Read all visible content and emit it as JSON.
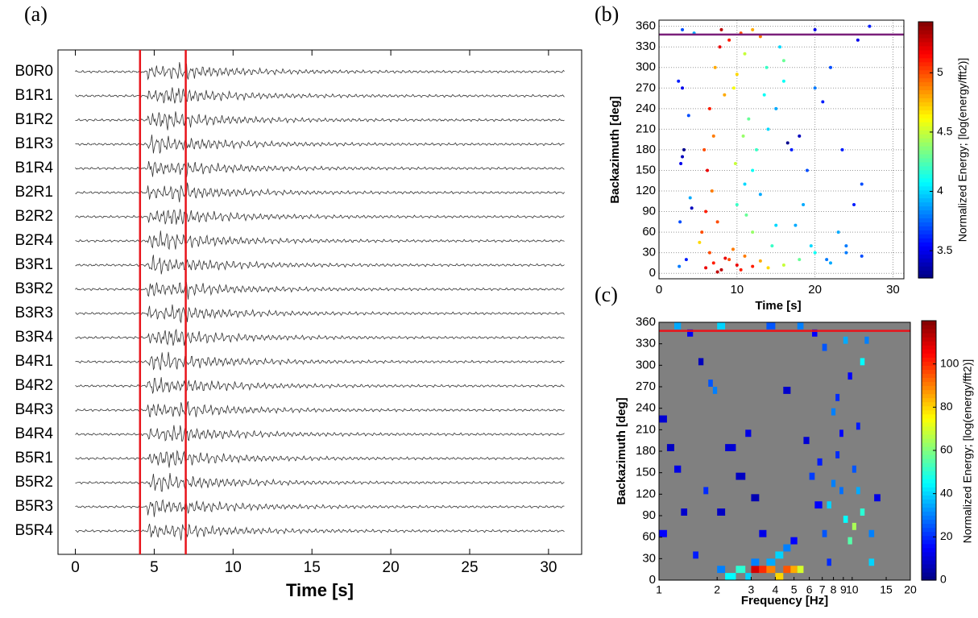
{
  "chart_data": [
    {
      "type": "traces",
      "label": "(a)",
      "xlabel": "Time [s]",
      "stations": [
        "B0R0",
        "B1R1",
        "B1R2",
        "B1R3",
        "B1R4",
        "B2R1",
        "B2R2",
        "B2R4",
        "B3R1",
        "B3R2",
        "B3R3",
        "B3R4",
        "B4R1",
        "B4R2",
        "B4R3",
        "B4R4",
        "B5R1",
        "B5R2",
        "B5R3",
        "B5R4"
      ],
      "xlim": [
        -1.1,
        32.1
      ],
      "xticks": [
        0,
        5,
        10,
        15,
        20,
        25,
        30
      ],
      "markers": [
        4.1,
        7.0
      ],
      "marker_color": "#e8141b",
      "trace_color": "#333333"
    },
    {
      "type": "scatter",
      "label": "(b)",
      "xlabel": "Time [s]",
      "ylabel": "Backazimuth [deg]",
      "colorbar_label": "Normalized Energy; [log(energy/fft2)]",
      "colormap": "jet",
      "xlim": [
        0,
        31.4
      ],
      "xticks": [
        0,
        10,
        20,
        30
      ],
      "ylim": [
        -8,
        369
      ],
      "yticks": [
        0,
        30,
        60,
        90,
        120,
        150,
        180,
        210,
        240,
        270,
        300,
        330,
        360
      ],
      "clim": [
        3.27,
        5.43
      ],
      "cticks": [
        3.5,
        4,
        4.5,
        5
      ],
      "grid": true,
      "hline": 348,
      "hline_color": "#7a1f7a",
      "points": [
        [
          6,
          8,
          5.2
        ],
        [
          7,
          15,
          5.1
        ],
        [
          8,
          5,
          5.3
        ],
        [
          9,
          20,
          5.0
        ],
        [
          10,
          12,
          5.2
        ],
        [
          11,
          25,
          4.9
        ],
        [
          12,
          10,
          5.1
        ],
        [
          13,
          18,
          4.8
        ],
        [
          6.5,
          30,
          5.0
        ],
        [
          7.5,
          2,
          5.3
        ],
        [
          8.5,
          22,
          5.2
        ],
        [
          9.5,
          35,
          4.9
        ],
        [
          10.5,
          5,
          5.1
        ],
        [
          14,
          8,
          4.7
        ],
        [
          16,
          12,
          4.5
        ],
        [
          18,
          20,
          4.3
        ],
        [
          20,
          30,
          4.1
        ],
        [
          22,
          15,
          3.9
        ],
        [
          24,
          40,
          3.8
        ],
        [
          26,
          25,
          3.7
        ],
        [
          5.5,
          60,
          5.0
        ],
        [
          6,
          90,
          5.1
        ],
        [
          6.2,
          150,
          5.2
        ],
        [
          5.8,
          180,
          5.0
        ],
        [
          7,
          200,
          4.9
        ],
        [
          6.5,
          240,
          5.1
        ],
        [
          7.2,
          300,
          4.8
        ],
        [
          7.8,
          330,
          5.2
        ],
        [
          8,
          355,
          5.3
        ],
        [
          9,
          340,
          5.1
        ],
        [
          6.8,
          120,
          4.9
        ],
        [
          7.5,
          75,
          5.0
        ],
        [
          5.2,
          45,
          4.7
        ],
        [
          8.4,
          260,
          4.8
        ],
        [
          9.6,
          270,
          4.6
        ],
        [
          10,
          290,
          4.7
        ],
        [
          10.5,
          350,
          5.0
        ],
        [
          11,
          320,
          4.5
        ],
        [
          12,
          355,
          4.8
        ],
        [
          13,
          345,
          4.9
        ],
        [
          10,
          100,
          4.2
        ],
        [
          11,
          130,
          4.0
        ],
        [
          12,
          150,
          4.1
        ],
        [
          13,
          115,
          3.9
        ],
        [
          12.5,
          180,
          4.2
        ],
        [
          14,
          210,
          4.0
        ],
        [
          11.5,
          225,
          4.3
        ],
        [
          13.5,
          260,
          4.1
        ],
        [
          12,
          60,
          4.4
        ],
        [
          14.5,
          40,
          4.2
        ],
        [
          15,
          70,
          4.0
        ],
        [
          10.8,
          200,
          4.4
        ],
        [
          9.8,
          160,
          4.5
        ],
        [
          11.2,
          85,
          4.3
        ],
        [
          13.8,
          300,
          4.2
        ],
        [
          15.5,
          330,
          4.0
        ],
        [
          16,
          310,
          4.3
        ],
        [
          15,
          240,
          3.9
        ],
        [
          17,
          180,
          3.6
        ],
        [
          18,
          200,
          3.4
        ],
        [
          16.5,
          190,
          3.3
        ],
        [
          19,
          150,
          3.7
        ],
        [
          20,
          270,
          3.8
        ],
        [
          21,
          250,
          3.6
        ],
        [
          22,
          300,
          3.7
        ],
        [
          23,
          60,
          3.9
        ],
        [
          24,
          30,
          3.8
        ],
        [
          25,
          100,
          3.6
        ],
        [
          26,
          130,
          3.7
        ],
        [
          27,
          360,
          3.6
        ],
        [
          20,
          355,
          3.5
        ],
        [
          18.5,
          100,
          3.9
        ],
        [
          19.5,
          40,
          4.0
        ],
        [
          21.5,
          20,
          3.8
        ],
        [
          23.5,
          180,
          3.6
        ],
        [
          25.5,
          340,
          3.5
        ],
        [
          17.5,
          70,
          3.9
        ],
        [
          16,
          280,
          4.1
        ],
        [
          3,
          170,
          3.4
        ],
        [
          3.2,
          180,
          3.3
        ],
        [
          2.8,
          160,
          3.5
        ],
        [
          2.5,
          280,
          3.6
        ],
        [
          3,
          270,
          3.5
        ],
        [
          2.7,
          75,
          3.7
        ],
        [
          3.5,
          20,
          3.6
        ],
        [
          2.6,
          10,
          3.8
        ],
        [
          4,
          110,
          3.9
        ],
        [
          4.2,
          95,
          3.4
        ],
        [
          3.8,
          230,
          3.7
        ],
        [
          4.5,
          350,
          3.9
        ],
        [
          3,
          355,
          3.7
        ]
      ]
    },
    {
      "type": "heatmap",
      "label": "(c)",
      "xlabel": "Frequency [Hz]",
      "ylabel": "Backazimuth [deg]",
      "colorbar_label": "Normalized Energy; [log(energy/fft2)]",
      "colormap": "jet",
      "background": "#808080",
      "log_x": true,
      "xlim": [
        1,
        20
      ],
      "xticks": [
        1,
        2,
        3,
        4,
        5,
        6,
        7,
        8,
        9,
        10,
        15,
        20
      ],
      "ylim": [
        0,
        360
      ],
      "yticks": [
        0,
        30,
        60,
        90,
        120,
        150,
        180,
        210,
        240,
        270,
        300,
        330,
        360
      ],
      "clim": [
        0,
        120
      ],
      "cticks": [
        0,
        20,
        40,
        60,
        80,
        100
      ],
      "hline": 348,
      "hline_color": "#e8141b",
      "cells": [
        [
          3,
          3.3,
          10,
          20,
          110
        ],
        [
          3.3,
          3.6,
          10,
          20,
          100
        ],
        [
          3.6,
          4,
          10,
          20,
          90
        ],
        [
          4,
          4.4,
          0,
          10,
          80
        ],
        [
          4.4,
          4.8,
          10,
          20,
          95
        ],
        [
          4.8,
          5.2,
          10,
          20,
          85
        ],
        [
          5.2,
          5.6,
          10,
          20,
          70
        ],
        [
          2.5,
          2.8,
          10,
          20,
          50
        ],
        [
          2.8,
          3,
          0,
          10,
          40
        ],
        [
          2.2,
          2.5,
          0,
          10,
          45
        ],
        [
          2,
          2.2,
          10,
          20,
          30
        ],
        [
          3,
          3.3,
          20,
          30,
          30
        ],
        [
          3.6,
          4,
          20,
          30,
          35
        ],
        [
          4,
          4.4,
          30,
          40,
          40
        ],
        [
          4.4,
          4.8,
          40,
          50,
          30
        ],
        [
          4.8,
          5.2,
          50,
          60,
          15
        ],
        [
          7,
          7.4,
          60,
          70,
          25
        ],
        [
          7.4,
          7.8,
          100,
          110,
          40
        ],
        [
          7.8,
          8.2,
          130,
          140,
          30
        ],
        [
          8.2,
          8.6,
          170,
          180,
          20
        ],
        [
          8.6,
          9,
          200,
          210,
          15
        ],
        [
          9,
          9.5,
          80,
          90,
          45
        ],
        [
          9.5,
          10,
          50,
          60,
          55
        ],
        [
          10,
          10.5,
          70,
          80,
          65
        ],
        [
          10.5,
          11,
          120,
          130,
          35
        ],
        [
          11,
          11.6,
          300,
          310,
          45
        ],
        [
          11.6,
          12.2,
          330,
          340,
          30
        ],
        [
          12.2,
          13,
          20,
          30,
          40
        ],
        [
          10,
          10.5,
          150,
          160,
          25
        ],
        [
          8.2,
          8.6,
          250,
          260,
          20
        ],
        [
          7.8,
          8.2,
          230,
          240,
          30
        ],
        [
          9,
          9.5,
          330,
          340,
          35
        ],
        [
          9.5,
          10,
          280,
          290,
          15
        ],
        [
          10.5,
          11,
          210,
          220,
          18
        ],
        [
          7,
          7.4,
          320,
          330,
          25
        ],
        [
          12.2,
          13,
          60,
          70,
          30
        ],
        [
          13,
          14,
          110,
          120,
          12
        ],
        [
          11,
          11.6,
          90,
          100,
          50
        ],
        [
          8.6,
          9,
          120,
          130,
          28
        ],
        [
          7.4,
          7.8,
          20,
          30,
          20
        ],
        [
          1,
          1.1,
          220,
          230,
          10
        ],
        [
          1.1,
          1.2,
          180,
          190,
          8
        ],
        [
          1.2,
          1.3,
          150,
          160,
          12
        ],
        [
          1,
          1.1,
          60,
          70,
          15
        ],
        [
          1.3,
          1.4,
          90,
          100,
          9
        ],
        [
          1.5,
          1.6,
          30,
          40,
          18
        ],
        [
          1.6,
          1.7,
          300,
          310,
          7
        ],
        [
          1.7,
          1.8,
          120,
          130,
          20
        ],
        [
          1.8,
          1.9,
          270,
          280,
          25
        ],
        [
          1.9,
          2,
          260,
          270,
          30
        ],
        [
          2.2,
          2.5,
          180,
          190,
          10
        ],
        [
          2.5,
          2.8,
          140,
          150,
          8
        ],
        [
          2.8,
          3,
          200,
          210,
          12
        ],
        [
          3,
          3.3,
          110,
          120,
          6
        ],
        [
          1.4,
          1.5,
          340,
          350,
          14
        ],
        [
          1.2,
          1.3,
          350,
          360,
          35
        ],
        [
          2,
          2.2,
          350,
          360,
          40
        ],
        [
          3.6,
          4,
          350,
          360,
          25
        ],
        [
          5.2,
          5.6,
          350,
          360,
          30
        ],
        [
          6.2,
          6.6,
          340,
          350,
          15
        ],
        [
          4.4,
          4.8,
          260,
          270,
          9
        ],
        [
          3.3,
          3.6,
          60,
          70,
          12
        ],
        [
          2,
          2.2,
          90,
          100,
          8
        ],
        [
          5.6,
          6,
          190,
          200,
          10
        ],
        [
          6.6,
          7,
          160,
          170,
          18
        ],
        [
          6,
          6.4,
          140,
          150,
          22
        ],
        [
          6.4,
          7,
          100,
          110,
          15
        ]
      ]
    }
  ]
}
